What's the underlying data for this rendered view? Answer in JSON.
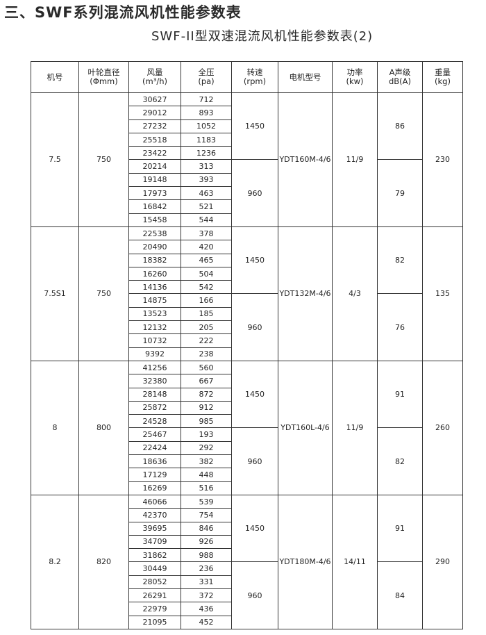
{
  "title": "三、SWF系列混流风机性能参数表",
  "subtitle": "SWF-II型双速混流风机性能参数表(2)",
  "headers": [
    [
      "机号",
      ""
    ],
    [
      "叶轮直径",
      "(Φmm)"
    ],
    [
      "风量",
      "(m³/h)"
    ],
    [
      "全压",
      "(pa)"
    ],
    [
      "转速",
      "(rpm)"
    ],
    [
      "电机型号",
      ""
    ],
    [
      "功率",
      "(kw)"
    ],
    [
      "A声级",
      "dB(A)"
    ],
    [
      "重量",
      "(kg)"
    ]
  ],
  "groups": [
    {
      "model": "7.5",
      "diameter": "750",
      "motor": "YDT160M-4/6",
      "power": "11/9",
      "weight": "230",
      "speeds": [
        {
          "rpm": "1450",
          "noise": "86",
          "rows": [
            [
              "30627",
              "712"
            ],
            [
              "29012",
              "893"
            ],
            [
              "27232",
              "1052"
            ],
            [
              "25518",
              "1183"
            ],
            [
              "23422",
              "1236"
            ]
          ]
        },
        {
          "rpm": "960",
          "noise": "79",
          "rows": [
            [
              "20214",
              "313"
            ],
            [
              "19148",
              "393"
            ],
            [
              "17973",
              "463"
            ],
            [
              "16842",
              "521"
            ],
            [
              "15458",
              "544"
            ]
          ]
        }
      ]
    },
    {
      "model": "7.5S1",
      "diameter": "750",
      "motor": "YDT132M-4/6",
      "power": "4/3",
      "weight": "135",
      "speeds": [
        {
          "rpm": "1450",
          "noise": "82",
          "rows": [
            [
              "22538",
              "378"
            ],
            [
              "20490",
              "420"
            ],
            [
              "18382",
              "465"
            ],
            [
              "16260",
              "504"
            ],
            [
              "14136",
              "542"
            ]
          ]
        },
        {
          "rpm": "960",
          "noise": "76",
          "rows": [
            [
              "14875",
              "166"
            ],
            [
              "13523",
              "185"
            ],
            [
              "12132",
              "205"
            ],
            [
              "10732",
              "222"
            ],
            [
              "9392",
              "238"
            ]
          ]
        }
      ]
    },
    {
      "model": "8",
      "diameter": "800",
      "motor": "YDT160L-4/6",
      "power": "11/9",
      "weight": "260",
      "speeds": [
        {
          "rpm": "1450",
          "noise": "91",
          "rows": [
            [
              "41256",
              "560"
            ],
            [
              "32380",
              "667"
            ],
            [
              "28148",
              "872"
            ],
            [
              "25872",
              "912"
            ],
            [
              "24528",
              "985"
            ]
          ]
        },
        {
          "rpm": "960",
          "noise": "82",
          "rows": [
            [
              "25467",
              "193"
            ],
            [
              "22424",
              "292"
            ],
            [
              "18636",
              "382"
            ],
            [
              "17129",
              "448"
            ],
            [
              "16269",
              "516"
            ]
          ]
        }
      ]
    },
    {
      "model": "8.2",
      "diameter": "820",
      "motor": "YDT180M-4/6",
      "power": "14/11",
      "weight": "290",
      "speeds": [
        {
          "rpm": "1450",
          "noise": "91",
          "rows": [
            [
              "46066",
              "539"
            ],
            [
              "42370",
              "754"
            ],
            [
              "39695",
              "846"
            ],
            [
              "34709",
              "926"
            ],
            [
              "31862",
              "988"
            ]
          ]
        },
        {
          "rpm": "960",
          "noise": "84",
          "rows": [
            [
              "30449",
              "236"
            ],
            [
              "28052",
              "331"
            ],
            [
              "26291",
              "372"
            ],
            [
              "22979",
              "436"
            ],
            [
              "21095",
              "452"
            ]
          ]
        }
      ]
    }
  ]
}
